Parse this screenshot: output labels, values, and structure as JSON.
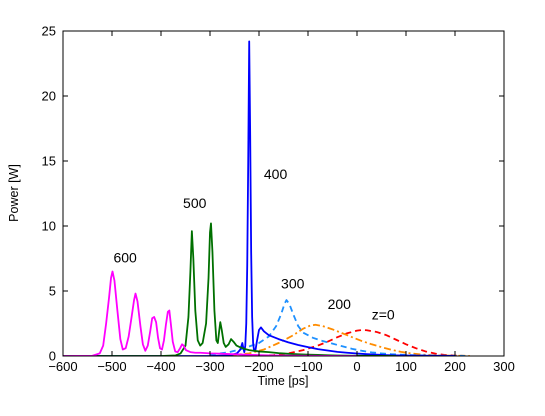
{
  "chart_data": {
    "type": "line",
    "title": "",
    "xlabel": "Time [ps]",
    "ylabel": "Power [W]",
    "xlim": [
      -600,
      300
    ],
    "ylim": [
      0,
      25
    ],
    "xticks": [
      -600,
      -500,
      -400,
      -300,
      -200,
      -100,
      0,
      100,
      200,
      300
    ],
    "yticks": [
      0,
      5,
      10,
      15,
      20,
      25
    ],
    "grid": false,
    "legend": "none",
    "series": [
      {
        "color": "#ff0000",
        "dash": "dashed",
        "points": [
          [
            -200,
            0.02
          ],
          [
            -170,
            0.07
          ],
          [
            -140,
            0.2
          ],
          [
            -110,
            0.45
          ],
          [
            -80,
            0.8
          ],
          [
            -60,
            1.1
          ],
          [
            -40,
            1.45
          ],
          [
            -20,
            1.75
          ],
          [
            0,
            1.95
          ],
          [
            10,
            2.0
          ],
          [
            20,
            1.98
          ],
          [
            40,
            1.85
          ],
          [
            60,
            1.6
          ],
          [
            80,
            1.25
          ],
          [
            100,
            0.9
          ],
          [
            120,
            0.6
          ],
          [
            140,
            0.35
          ],
          [
            160,
            0.18
          ],
          [
            180,
            0.08
          ],
          [
            200,
            0.03
          ],
          [
            220,
            0.01
          ]
        ]
      },
      {
        "color": "#ff8c00",
        "dash": "dashdot",
        "points": [
          [
            -260,
            0.05
          ],
          [
            -220,
            0.2
          ],
          [
            -190,
            0.5
          ],
          [
            -160,
            1.0
          ],
          [
            -130,
            1.6
          ],
          [
            -110,
            2.1
          ],
          [
            -95,
            2.35
          ],
          [
            -85,
            2.4
          ],
          [
            -70,
            2.3
          ],
          [
            -50,
            2.05
          ],
          [
            -30,
            1.75
          ],
          [
            -10,
            1.45
          ],
          [
            10,
            1.15
          ],
          [
            30,
            0.9
          ],
          [
            50,
            0.68
          ],
          [
            70,
            0.48
          ],
          [
            90,
            0.32
          ],
          [
            110,
            0.2
          ],
          [
            130,
            0.12
          ],
          [
            150,
            0.07
          ],
          [
            170,
            0.04
          ],
          [
            200,
            0.02
          ],
          [
            230,
            0.01
          ]
        ]
      },
      {
        "color": "#1e90ff",
        "dash": "dashed",
        "points": [
          [
            -300,
            0.1
          ],
          [
            -260,
            0.3
          ],
          [
            -230,
            0.6
          ],
          [
            -200,
            1.0
          ],
          [
            -180,
            1.5
          ],
          [
            -165,
            2.3
          ],
          [
            -155,
            3.2
          ],
          [
            -148,
            4.0
          ],
          [
            -144,
            4.3
          ],
          [
            -138,
            4.0
          ],
          [
            -130,
            3.2
          ],
          [
            -120,
            2.3
          ],
          [
            -110,
            1.8
          ],
          [
            -90,
            1.4
          ],
          [
            -70,
            1.15
          ],
          [
            -50,
            0.95
          ],
          [
            -30,
            0.75
          ],
          [
            -10,
            0.55
          ],
          [
            10,
            0.4
          ],
          [
            30,
            0.28
          ],
          [
            50,
            0.2
          ],
          [
            70,
            0.14
          ],
          [
            90,
            0.1
          ],
          [
            110,
            0.07
          ],
          [
            130,
            0.05
          ],
          [
            160,
            0.03
          ],
          [
            190,
            0.02
          ],
          [
            220,
            0.01
          ]
        ]
      },
      {
        "color": "#0000ff",
        "dash": "solid",
        "points": [
          [
            -600,
            0
          ],
          [
            -300,
            0
          ],
          [
            -260,
            0.05
          ],
          [
            -245,
            0.2
          ],
          [
            -238,
            0.5
          ],
          [
            -234,
            1.0
          ],
          [
            -232,
            0.6
          ],
          [
            -230,
            0.3
          ],
          [
            -228,
            0.8
          ],
          [
            -226,
            2.5
          ],
          [
            -224,
            7.0
          ],
          [
            -222,
            15.0
          ],
          [
            -220,
            24.2
          ],
          [
            -218,
            17.0
          ],
          [
            -216,
            8.0
          ],
          [
            -214,
            3.0
          ],
          [
            -212,
            1.0
          ],
          [
            -210,
            0.4
          ],
          [
            -207,
            0.5
          ],
          [
            -204,
            1.2
          ],
          [
            -200,
            2.0
          ],
          [
            -196,
            2.2
          ],
          [
            -190,
            1.9
          ],
          [
            -180,
            1.6
          ],
          [
            -160,
            1.3
          ],
          [
            -140,
            1.05
          ],
          [
            -120,
            0.85
          ],
          [
            -100,
            0.68
          ],
          [
            -80,
            0.53
          ],
          [
            -60,
            0.42
          ],
          [
            -40,
            0.32
          ],
          [
            -20,
            0.25
          ],
          [
            0,
            0.19
          ],
          [
            20,
            0.14
          ],
          [
            40,
            0.1
          ],
          [
            60,
            0.07
          ],
          [
            80,
            0.05
          ],
          [
            100,
            0.04
          ],
          [
            130,
            0.03
          ],
          [
            160,
            0.02
          ],
          [
            200,
            0.01
          ]
        ]
      },
      {
        "color": "#007000",
        "dash": "solid",
        "points": [
          [
            -600,
            0
          ],
          [
            -400,
            0
          ],
          [
            -370,
            0.05
          ],
          [
            -360,
            0.2
          ],
          [
            -350,
            0.8
          ],
          [
            -344,
            3.0
          ],
          [
            -340,
            6.5
          ],
          [
            -337,
            9.6
          ],
          [
            -334,
            7.5
          ],
          [
            -330,
            3.5
          ],
          [
            -325,
            1.2
          ],
          [
            -320,
            0.8
          ],
          [
            -315,
            1.0
          ],
          [
            -308,
            2.5
          ],
          [
            -303,
            6.0
          ],
          [
            -300,
            9.5
          ],
          [
            -298,
            10.2
          ],
          [
            -295,
            8.0
          ],
          [
            -291,
            3.5
          ],
          [
            -287,
            1.2
          ],
          [
            -284,
            1.0
          ],
          [
            -281,
            2.0
          ],
          [
            -279,
            2.6
          ],
          [
            -276,
            2.0
          ],
          [
            -272,
            1.0
          ],
          [
            -268,
            0.7
          ],
          [
            -262,
            0.9
          ],
          [
            -257,
            1.3
          ],
          [
            -252,
            1.1
          ],
          [
            -246,
            0.8
          ],
          [
            -240,
            0.7
          ],
          [
            -230,
            0.55
          ],
          [
            -220,
            0.45
          ],
          [
            -200,
            0.35
          ],
          [
            -180,
            0.3
          ],
          [
            -160,
            0.22
          ],
          [
            -140,
            0.17
          ],
          [
            -120,
            0.13
          ],
          [
            -100,
            0.1
          ],
          [
            -80,
            0.08
          ],
          [
            -60,
            0.06
          ],
          [
            -40,
            0.04
          ],
          [
            0,
            0.02
          ],
          [
            40,
            0.01
          ],
          [
            80,
            0
          ]
        ]
      },
      {
        "color": "#ff00ff",
        "dash": "solid",
        "points": [
          [
            -600,
            0
          ],
          [
            -540,
            0.02
          ],
          [
            -525,
            0.2
          ],
          [
            -518,
            0.8
          ],
          [
            -512,
            2.5
          ],
          [
            -506,
            4.5
          ],
          [
            -502,
            6.0
          ],
          [
            -499,
            6.5
          ],
          [
            -495,
            5.8
          ],
          [
            -489,
            3.5
          ],
          [
            -483,
            1.3
          ],
          [
            -478,
            0.5
          ],
          [
            -472,
            0.6
          ],
          [
            -466,
            1.5
          ],
          [
            -460,
            3.0
          ],
          [
            -455,
            4.3
          ],
          [
            -452,
            4.8
          ],
          [
            -448,
            4.2
          ],
          [
            -442,
            2.3
          ],
          [
            -437,
            0.9
          ],
          [
            -432,
            0.4
          ],
          [
            -427,
            0.8
          ],
          [
            -422,
            1.9
          ],
          [
            -418,
            2.9
          ],
          [
            -414,
            3.0
          ],
          [
            -410,
            2.6
          ],
          [
            -406,
            1.4
          ],
          [
            -402,
            0.6
          ],
          [
            -398,
            0.5
          ],
          [
            -394,
            1.2
          ],
          [
            -390,
            2.4
          ],
          [
            -386,
            3.4
          ],
          [
            -383,
            3.5
          ],
          [
            -380,
            2.5
          ],
          [
            -376,
            1.1
          ],
          [
            -371,
            0.35
          ],
          [
            -366,
            0.3
          ],
          [
            -361,
            0.6
          ],
          [
            -357,
            0.9
          ],
          [
            -354,
            0.8
          ],
          [
            -349,
            0.45
          ],
          [
            -340,
            0.3
          ],
          [
            -330,
            0.25
          ],
          [
            -320,
            0.25
          ],
          [
            -300,
            0.2
          ],
          [
            -280,
            0.18
          ],
          [
            -260,
            0.15
          ],
          [
            -240,
            0.12
          ],
          [
            -220,
            0.09
          ],
          [
            -200,
            0.07
          ],
          [
            -180,
            0.05
          ],
          [
            -160,
            0.04
          ],
          [
            -140,
            0.03
          ],
          [
            -100,
            0.02
          ],
          [
            -60,
            0.01
          ],
          [
            0,
            0
          ]
        ]
      }
    ],
    "annotations": [
      {
        "text": "z=0",
        "x": 30,
        "y": 2.8
      },
      {
        "text": "200",
        "x": -60,
        "y": 3.6
      },
      {
        "text": "300",
        "x": -155,
        "y": 5.2
      },
      {
        "text": "400",
        "x": -190,
        "y": 13.6
      },
      {
        "text": "500",
        "x": -355,
        "y": 11.4
      },
      {
        "text": "600",
        "x": -497,
        "y": 7.2
      }
    ]
  }
}
